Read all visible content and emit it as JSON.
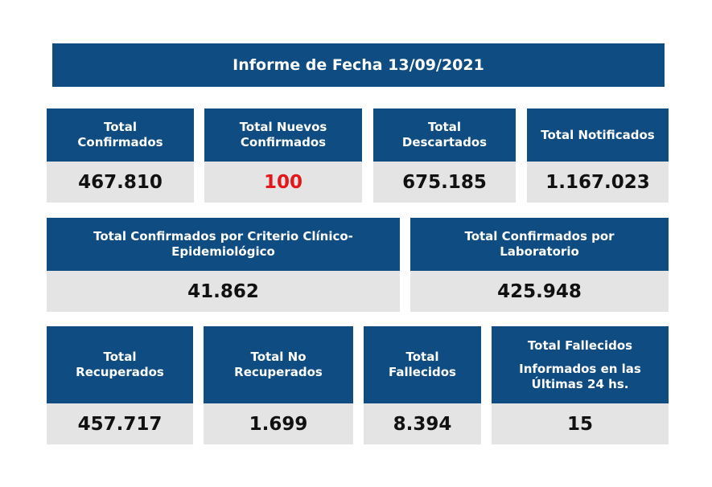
{
  "title": "Informe de Fecha 13/09/2021",
  "row1": [
    {
      "label": "Total\nConfirmados",
      "value": "467.810"
    },
    {
      "label": "Total Nuevos\nConfirmados",
      "value": "100"
    },
    {
      "label": "Total\nDescartados",
      "value": "675.185"
    },
    {
      "label": "Total Notificados",
      "value": "1.167.023"
    }
  ],
  "row2": [
    {
      "label": "Total Confirmados por Criterio Clínico-\nEpidemiológico",
      "value": "41.862"
    },
    {
      "label": "Total Confirmados por\nLaboratorio",
      "value": "425.948"
    }
  ],
  "row3": [
    {
      "label": "Total\nRecuperados",
      "value": "457.717"
    },
    {
      "label": "Total No\nRecuperados",
      "value": "1.699"
    },
    {
      "label": "Total\nFallecidos",
      "value": "8.394"
    },
    {
      "label": "Total Fallecidos",
      "label2": "Informados en las\nÚltimas 24 hs.",
      "value": "15"
    }
  ],
  "colors": {
    "header_blue": "#0f4c81",
    "value_gray": "#e4e4e4",
    "highlight_red": "#e3161c"
  }
}
